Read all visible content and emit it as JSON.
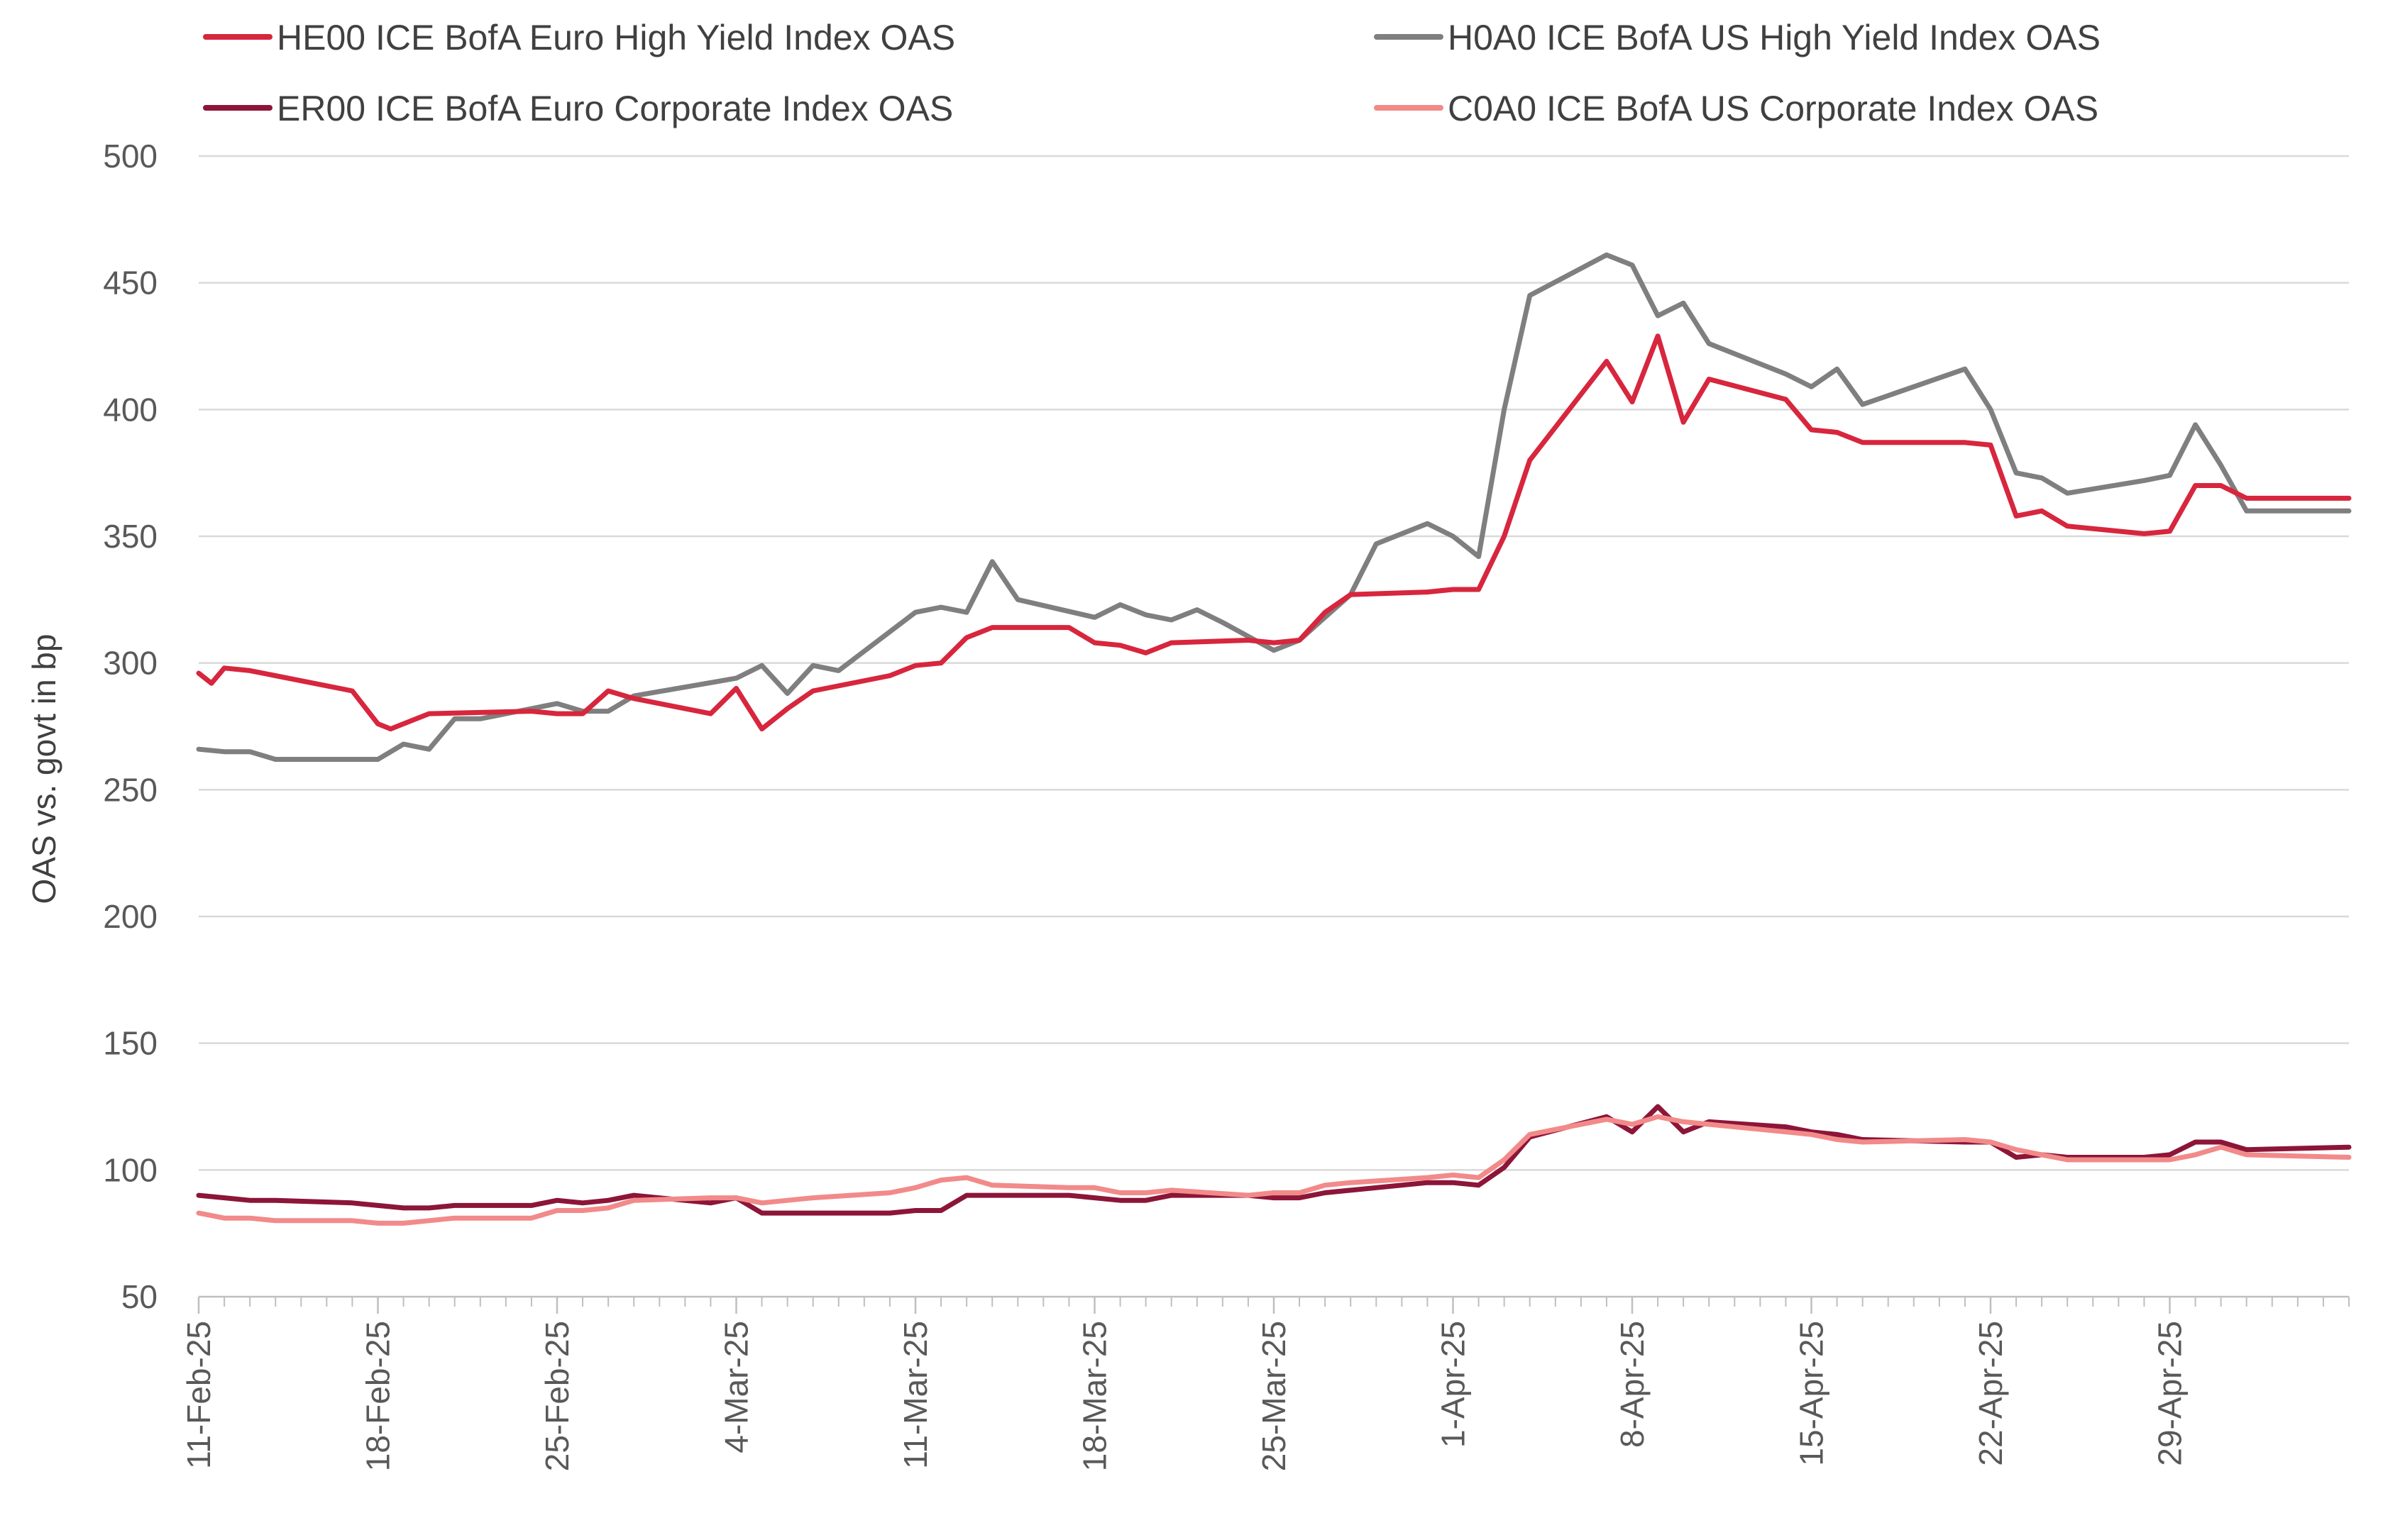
{
  "chart_data": {
    "type": "line",
    "ylabel": "OAS vs. govt in bp",
    "xlabel": "",
    "ylim": [
      50,
      500
    ],
    "y_ticks": [
      50,
      100,
      150,
      200,
      250,
      300,
      350,
      400,
      450,
      500
    ],
    "x_ticks": [
      "11-Feb-25",
      "18-Feb-25",
      "25-Feb-25",
      "4-Mar-25",
      "11-Mar-25",
      "18-Mar-25",
      "25-Mar-25",
      "1-Apr-25",
      "8-Apr-25",
      "15-Apr-25",
      "22-Apr-25",
      "29-Apr-25"
    ],
    "x_tick_days": [
      0,
      7,
      14,
      21,
      28,
      35,
      42,
      49,
      56,
      63,
      70,
      77
    ],
    "x_range_days": [
      0,
      84
    ],
    "grid": "horizontal",
    "legend_position": "top",
    "series": [
      {
        "name": "HE00 ICE BofA Euro High Yield Index OAS",
        "color": "#d7263d",
        "x": [
          "11-Feb-25",
          "12-Feb-25",
          "13-Feb-25",
          "14-Feb-25",
          "17-Feb-25",
          "18-Feb-25",
          "19-Feb-25",
          "20-Feb-25",
          "21-Feb-25",
          "24-Feb-25",
          "25-Feb-25",
          "26-Feb-25",
          "27-Feb-25",
          "28-Feb-25",
          "3-Mar-25",
          "4-Mar-25",
          "5-Mar-25",
          "6-Mar-25",
          "7-Mar-25",
          "10-Mar-25",
          "11-Mar-25",
          "12-Mar-25",
          "13-Mar-25",
          "14-Mar-25",
          "17-Mar-25",
          "18-Mar-25",
          "19-Mar-25",
          "20-Mar-25",
          "21-Mar-25",
          "24-Mar-25",
          "25-Mar-25",
          "26-Mar-25",
          "27-Mar-25",
          "28-Mar-25",
          "31-Mar-25",
          "1-Apr-25",
          "2-Apr-25",
          "3-Apr-25",
          "4-Apr-25",
          "7-Apr-25",
          "8-Apr-25",
          "9-Apr-25",
          "10-Apr-25",
          "11-Apr-25",
          "14-Apr-25",
          "15-Apr-25",
          "16-Apr-25",
          "17-Apr-25",
          "21-Apr-25",
          "22-Apr-25",
          "23-Apr-25",
          "24-Apr-25",
          "25-Apr-25",
          "28-Apr-25",
          "29-Apr-25",
          "30-Apr-25",
          "1-May-25",
          "2-May-25",
          "5-May-25"
        ],
        "days": [
          0,
          0.5,
          1,
          2,
          6,
          7,
          7.5,
          8,
          9,
          13,
          14,
          15,
          16,
          17,
          20,
          21,
          22,
          23,
          24,
          27,
          28,
          29,
          30,
          31,
          34,
          35,
          36,
          37,
          38,
          41,
          42,
          43,
          44,
          45,
          48,
          49,
          50,
          51,
          52,
          55,
          56,
          57,
          58,
          59,
          62,
          63,
          64,
          65,
          69,
          70,
          71,
          72,
          73,
          76,
          77,
          78,
          79,
          80,
          84
        ],
        "values": [
          296,
          292,
          298,
          297,
          289,
          276,
          274,
          276,
          280,
          281,
          280,
          280,
          289,
          286,
          280,
          290,
          274,
          282,
          289,
          295,
          299,
          300,
          310,
          314,
          314,
          308,
          307,
          304,
          308,
          309,
          308,
          309,
          320,
          327,
          328,
          329,
          329,
          350,
          380,
          419,
          403,
          429,
          395,
          412,
          404,
          392,
          391,
          387,
          387,
          386,
          358,
          360,
          354,
          351,
          352,
          370,
          370,
          365,
          365
        ]
      },
      {
        "name": "H0A0 ICE BofA US High Yield Index OAS",
        "color": "#7f7f7f",
        "x": [
          "11-Feb-25",
          "12-Feb-25",
          "13-Feb-25",
          "14-Feb-25",
          "17-Feb-25",
          "18-Feb-25",
          "19-Feb-25",
          "20-Feb-25",
          "21-Feb-25",
          "24-Feb-25",
          "25-Feb-25",
          "26-Feb-25",
          "27-Feb-25",
          "28-Feb-25",
          "3-Mar-25",
          "4-Mar-25",
          "5-Mar-25",
          "6-Mar-25",
          "7-Mar-25",
          "10-Mar-25",
          "11-Mar-25",
          "12-Mar-25",
          "13-Mar-25",
          "14-Mar-25",
          "17-Mar-25",
          "18-Mar-25",
          "19-Mar-25",
          "20-Mar-25",
          "21-Mar-25",
          "24-Mar-25",
          "25-Mar-25",
          "26-Mar-25",
          "27-Mar-25",
          "28-Mar-25",
          "31-Mar-25",
          "1-Apr-25",
          "2-Apr-25",
          "3-Apr-25",
          "4-Apr-25",
          "7-Apr-25",
          "8-Apr-25",
          "9-Apr-25",
          "10-Apr-25",
          "11-Apr-25",
          "14-Apr-25",
          "15-Apr-25",
          "16-Apr-25",
          "17-Apr-25",
          "21-Apr-25",
          "22-Apr-25",
          "23-Apr-25",
          "24-Apr-25",
          "25-Apr-25",
          "28-Apr-25",
          "29-Apr-25",
          "30-Apr-25",
          "1-May-25",
          "2-May-25",
          "5-May-25"
        ],
        "days": [
          0,
          1,
          2,
          3,
          7,
          8,
          9,
          10,
          11,
          14,
          15,
          16,
          17,
          21,
          22,
          23,
          24,
          25,
          28,
          29,
          30,
          31,
          32,
          35,
          36,
          37,
          38,
          39,
          40,
          42,
          43,
          44,
          45,
          46,
          48,
          49,
          50,
          51,
          52,
          55,
          56,
          57,
          58,
          59,
          62,
          63,
          64,
          65,
          69,
          70,
          71,
          72,
          73,
          76,
          77,
          78,
          79,
          80,
          84
        ],
        "values": [
          266,
          265,
          265,
          262,
          262,
          268,
          266,
          278,
          278,
          284,
          281,
          281,
          287,
          294,
          299,
          288,
          299,
          297,
          320,
          322,
          320,
          340,
          325,
          318,
          323,
          319,
          317,
          321,
          316,
          305,
          309,
          318,
          327,
          347,
          355,
          350,
          342,
          400,
          445,
          461,
          457,
          437,
          442,
          426,
          414,
          409,
          416,
          402,
          416,
          400,
          375,
          373,
          367,
          372,
          374,
          394,
          378,
          360,
          360
        ]
      },
      {
        "name": "ER00 ICE BofA Euro Corporate Index OAS",
        "color": "#8c1538",
        "x": [
          "11-Feb-25",
          "12-Feb-25",
          "13-Feb-25",
          "14-Feb-25",
          "17-Feb-25",
          "18-Feb-25",
          "19-Feb-25",
          "20-Feb-25",
          "21-Feb-25",
          "24-Feb-25",
          "25-Feb-25",
          "26-Feb-25",
          "27-Feb-25",
          "28-Feb-25",
          "3-Mar-25",
          "4-Mar-25",
          "5-Mar-25",
          "6-Mar-25",
          "7-Mar-25",
          "10-Mar-25",
          "11-Mar-25",
          "12-Mar-25",
          "13-Mar-25",
          "14-Mar-25",
          "17-Mar-25",
          "18-Mar-25",
          "19-Mar-25",
          "20-Mar-25",
          "21-Mar-25",
          "24-Mar-25",
          "25-Mar-25",
          "26-Mar-25",
          "27-Mar-25",
          "28-Mar-25",
          "31-Mar-25",
          "1-Apr-25",
          "2-Apr-25",
          "3-Apr-25",
          "4-Apr-25",
          "7-Apr-25",
          "8-Apr-25",
          "9-Apr-25",
          "10-Apr-25",
          "11-Apr-25",
          "14-Apr-25",
          "15-Apr-25",
          "16-Apr-25",
          "17-Apr-25",
          "21-Apr-25",
          "22-Apr-25",
          "23-Apr-25",
          "24-Apr-25",
          "25-Apr-25",
          "28-Apr-25",
          "29-Apr-25",
          "30-Apr-25",
          "1-May-25",
          "2-May-25",
          "5-May-25"
        ],
        "days": [
          0,
          1,
          2,
          3,
          6,
          7,
          8,
          9,
          10,
          13,
          14,
          15,
          16,
          17,
          20,
          21,
          22,
          23,
          24,
          27,
          28,
          29,
          30,
          31,
          34,
          35,
          36,
          37,
          38,
          41,
          42,
          43,
          44,
          45,
          48,
          49,
          50,
          51,
          52,
          55,
          56,
          57,
          58,
          59,
          62,
          63,
          64,
          65,
          69,
          70,
          71,
          72,
          73,
          76,
          77,
          78,
          79,
          80,
          84
        ],
        "values": [
          90,
          89,
          88,
          88,
          87,
          86,
          85,
          85,
          86,
          86,
          88,
          87,
          88,
          90,
          87,
          89,
          83,
          83,
          83,
          83,
          84,
          84,
          90,
          90,
          90,
          89,
          88,
          88,
          90,
          90,
          89,
          89,
          91,
          92,
          95,
          95,
          94,
          101,
          113,
          121,
          115,
          125,
          115,
          119,
          117,
          115,
          114,
          112,
          111,
          111,
          105,
          106,
          105,
          105,
          106,
          111,
          111,
          108,
          109
        ]
      },
      {
        "name": "C0A0 ICE BofA US Corporate Index OAS",
        "color": "#f28a8a",
        "x": [
          "11-Feb-25",
          "12-Feb-25",
          "13-Feb-25",
          "14-Feb-25",
          "17-Feb-25",
          "18-Feb-25",
          "19-Feb-25",
          "20-Feb-25",
          "21-Feb-25",
          "24-Feb-25",
          "25-Feb-25",
          "26-Feb-25",
          "27-Feb-25",
          "28-Feb-25",
          "3-Mar-25",
          "4-Mar-25",
          "5-Mar-25",
          "6-Mar-25",
          "7-Mar-25",
          "10-Mar-25",
          "11-Mar-25",
          "12-Mar-25",
          "13-Mar-25",
          "14-Mar-25",
          "17-Mar-25",
          "18-Mar-25",
          "19-Mar-25",
          "20-Mar-25",
          "21-Mar-25",
          "24-Mar-25",
          "25-Mar-25",
          "26-Mar-25",
          "27-Mar-25",
          "28-Mar-25",
          "31-Mar-25",
          "1-Apr-25",
          "2-Apr-25",
          "3-Apr-25",
          "4-Apr-25",
          "7-Apr-25",
          "8-Apr-25",
          "9-Apr-25",
          "10-Apr-25",
          "11-Apr-25",
          "14-Apr-25",
          "15-Apr-25",
          "16-Apr-25",
          "17-Apr-25",
          "21-Apr-25",
          "22-Apr-25",
          "23-Apr-25",
          "24-Apr-25",
          "25-Apr-25",
          "28-Apr-25",
          "29-Apr-25",
          "30-Apr-25",
          "1-May-25",
          "2-May-25",
          "5-May-25"
        ],
        "days": [
          0,
          1,
          2,
          3,
          6,
          7,
          8,
          9,
          10,
          13,
          14,
          15,
          16,
          17,
          20,
          21,
          22,
          23,
          24,
          27,
          28,
          29,
          30,
          31,
          34,
          35,
          36,
          37,
          38,
          41,
          42,
          43,
          44,
          45,
          48,
          49,
          50,
          51,
          52,
          55,
          56,
          57,
          58,
          59,
          62,
          63,
          64,
          65,
          69,
          70,
          71,
          72,
          73,
          76,
          77,
          78,
          79,
          80,
          84
        ],
        "values": [
          83,
          81,
          81,
          80,
          80,
          79,
          79,
          80,
          81,
          81,
          84,
          84,
          85,
          88,
          89,
          89,
          87,
          88,
          89,
          91,
          93,
          96,
          97,
          94,
          93,
          93,
          91,
          91,
          92,
          90,
          91,
          91,
          94,
          95,
          97,
          98,
          97,
          104,
          114,
          120,
          118,
          121,
          119,
          118,
          115,
          114,
          112,
          111,
          112,
          111,
          108,
          106,
          104,
          104,
          104,
          106,
          109,
          106,
          105
        ]
      }
    ]
  }
}
